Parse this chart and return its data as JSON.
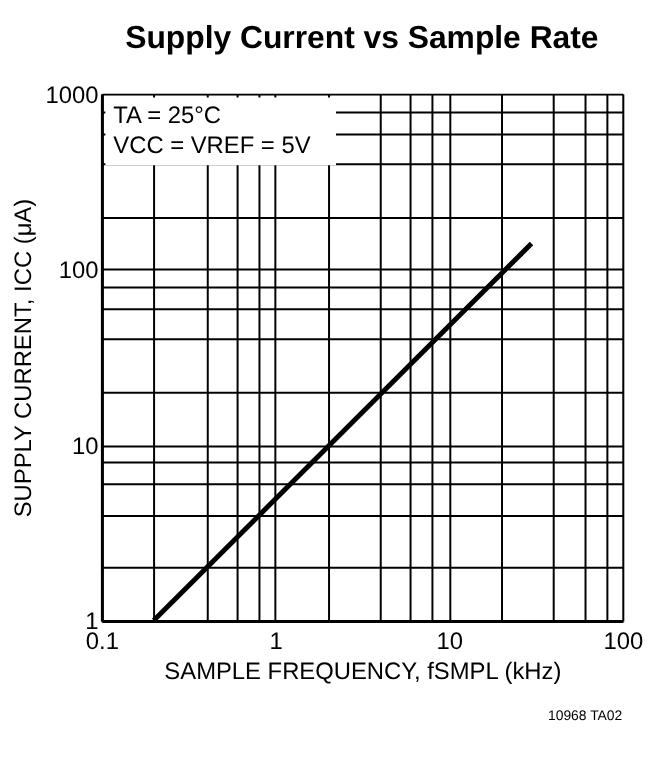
{
  "chart_data": {
    "type": "line",
    "title": "Supply Current vs Sample Rate",
    "xlabel": "SAMPLE FREQUENCY, fSMPL (kHz)",
    "ylabel": "SUPPLY CURRENT, ICC (μA)",
    "annotations": [
      "TA = 25°C",
      "VCC = VREF = 5V",
      "10968 TA02"
    ],
    "log": "xy",
    "series": [
      {
        "color": "#000000",
        "x": [
          0.2,
          30
        ],
        "values": [
          1,
          140
        ]
      }
    ],
    "xlim": [
      0.1,
      100
    ],
    "ylim": [
      1,
      1000
    ],
    "xticks": [
      0.1,
      {
        "value": 0.2,
        "label": null
      },
      {
        "value": 0.4,
        "label": null
      },
      {
        "value": 0.6,
        "label": null
      },
      {
        "value": 0.8,
        "label": null
      },
      1,
      {
        "value": 2,
        "label": null
      },
      {
        "value": 4,
        "label": null
      },
      {
        "value": 6,
        "label": null
      },
      {
        "value": 8,
        "label": null
      },
      10,
      {
        "value": 20,
        "label": null
      },
      {
        "value": 40,
        "label": null
      },
      {
        "value": 60,
        "label": null
      },
      {
        "value": 80,
        "label": null
      },
      100
    ],
    "yticks": [
      1,
      {
        "value": 2,
        "label": null
      },
      {
        "value": 4,
        "label": null
      },
      {
        "value": 6,
        "label": null
      },
      {
        "value": 8,
        "label": null
      },
      10,
      {
        "value": 20,
        "label": null
      },
      {
        "value": 40,
        "label": null
      },
      {
        "value": 60,
        "label": null
      },
      {
        "value": 80,
        "label": null
      },
      100,
      {
        "value": 200,
        "label": null
      },
      {
        "value": 400,
        "label": null
      },
      {
        "value": 600,
        "label": null
      },
      {
        "value": 800,
        "label": null
      },
      1000
    ],
    "grid": true,
    "line_style": "solid",
    "marker": "none"
  }
}
